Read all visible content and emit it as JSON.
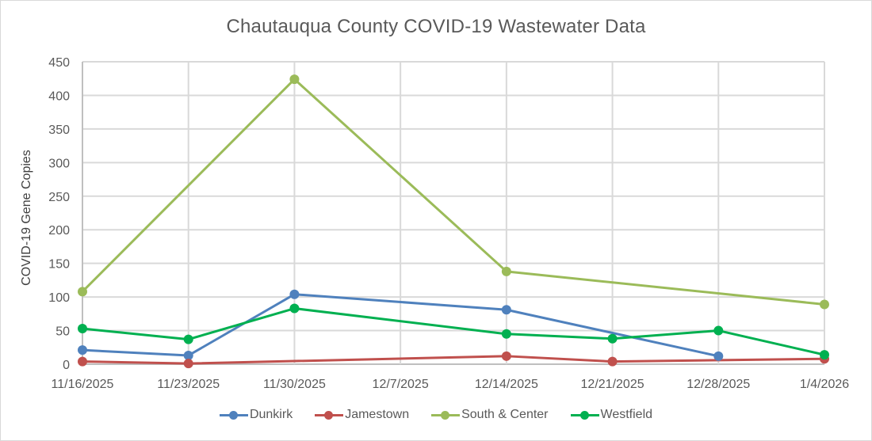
{
  "chart_data": {
    "type": "line",
    "title": "Chautauqua County COVID-19 Wastewater Data",
    "xlabel": "",
    "ylabel": "COVID-19 Gene Copies",
    "ylim": [
      0,
      450
    ],
    "yticks": [
      0,
      50,
      100,
      150,
      200,
      250,
      300,
      350,
      400,
      450
    ],
    "grid": true,
    "legend_position": "bottom",
    "categories": [
      "11/16/2025",
      "11/23/2025",
      "11/30/2025",
      "12/7/2025",
      "12/14/2025",
      "12/21/2025",
      "12/28/2025",
      "1/4/2026"
    ],
    "series": [
      {
        "name": "Dunkirk",
        "color": "#4f81bd",
        "values": [
          21,
          13,
          104,
          null,
          81,
          null,
          12,
          null
        ]
      },
      {
        "name": "Jamestown",
        "color": "#c0504d",
        "values": [
          4,
          1,
          null,
          null,
          12,
          4,
          null,
          8
        ]
      },
      {
        "name": "South & Center",
        "color": "#9bbb59",
        "values": [
          108,
          null,
          424,
          null,
          138,
          null,
          null,
          89
        ]
      },
      {
        "name": "Westfield",
        "color": "#00b050",
        "values": [
          53,
          37,
          83,
          null,
          45,
          38,
          50,
          14
        ]
      }
    ]
  },
  "legend": {
    "items": [
      {
        "label": "Dunkirk",
        "color": "#4f81bd"
      },
      {
        "label": "Jamestown",
        "color": "#c0504d"
      },
      {
        "label": "South & Center",
        "color": "#9bbb59"
      },
      {
        "label": "Westfield",
        "color": "#00b050"
      }
    ]
  }
}
